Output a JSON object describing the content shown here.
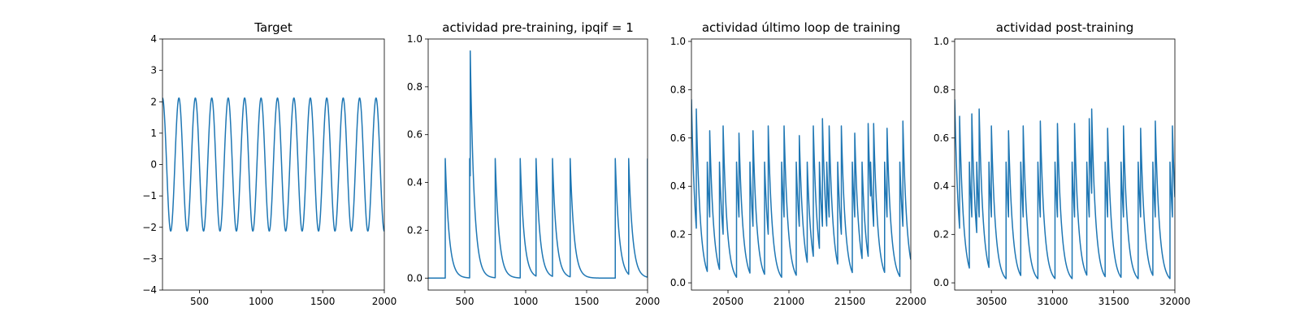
{
  "line_color": "#1f77b4",
  "chart_data": [
    {
      "type": "line",
      "title": "Target",
      "xlim": [
        200,
        2000
      ],
      "ylim": [
        -4,
        4
      ],
      "xticks": [
        500,
        1000,
        1500,
        2000
      ],
      "yticks": [
        -4,
        -3,
        -2,
        -1,
        0,
        1,
        2,
        3,
        4
      ],
      "series": [
        {
          "kind": "sine",
          "amplitude": 2.12,
          "period": 133.3,
          "peak_at": 200,
          "x_range": [
            200,
            2000
          ]
        }
      ]
    },
    {
      "type": "line",
      "title": "actividad pre-training, ipqif = 1",
      "xlim": [
        200,
        2000
      ],
      "ylim": [
        -0.05,
        1.0
      ],
      "xticks": [
        500,
        1000,
        1500,
        2000
      ],
      "yticks": [
        0.0,
        0.2,
        0.4,
        0.6,
        0.8,
        1.0
      ],
      "series": [
        {
          "kind": "spikes",
          "x_range": [
            200,
            2000
          ],
          "baseline": 0.0,
          "decay": 32,
          "spikes": [
            [
              340,
              0.5
            ],
            [
              540,
              0.5
            ],
            [
              545,
              0.95
            ],
            [
              750,
              0.5
            ],
            [
              955,
              0.5
            ],
            [
              1085,
              0.5
            ],
            [
              1220,
              0.5
            ],
            [
              1365,
              0.5
            ],
            [
              1735,
              0.5
            ],
            [
              1845,
              0.5
            ],
            [
              2000,
              0.5
            ]
          ]
        }
      ]
    },
    {
      "type": "line",
      "title": "actividad último loop de training",
      "xlim": [
        20200,
        22000
      ],
      "ylim": [
        -0.03,
        1.01
      ],
      "xticks": [
        20500,
        21000,
        21500,
        22000
      ],
      "yticks": [
        0.0,
        0.2,
        0.4,
        0.6,
        0.8,
        1.0
      ],
      "series": [
        {
          "kind": "spikes",
          "x_range": [
            20200,
            22000
          ],
          "baseline": 0.0,
          "decay": 33,
          "start_value": 0.76,
          "spikes": [
            [
              20240,
              0.72
            ],
            [
              20330,
              0.5
            ],
            [
              20350,
              0.63
            ],
            [
              20430,
              0.5
            ],
            [
              20460,
              0.65
            ],
            [
              20570,
              0.5
            ],
            [
              20590,
              0.62
            ],
            [
              20680,
              0.5
            ],
            [
              20705,
              0.63
            ],
            [
              20800,
              0.5
            ],
            [
              20830,
              0.65
            ],
            [
              20940,
              0.5
            ],
            [
              20960,
              0.65
            ],
            [
              21060,
              0.5
            ],
            [
              21085,
              0.61
            ],
            [
              21150,
              0.5
            ],
            [
              21200,
              0.65
            ],
            [
              21250,
              0.5
            ],
            [
              21275,
              0.68
            ],
            [
              21310,
              0.5
            ],
            [
              21330,
              0.65
            ],
            [
              21400,
              0.5
            ],
            [
              21430,
              0.65
            ],
            [
              21520,
              0.5
            ],
            [
              21540,
              0.62
            ],
            [
              21600,
              0.5
            ],
            [
              21650,
              0.66
            ],
            [
              21670,
              0.5
            ],
            [
              21695,
              0.66
            ],
            [
              21785,
              0.5
            ],
            [
              21805,
              0.64
            ],
            [
              21910,
              0.5
            ],
            [
              21935,
              0.67
            ]
          ]
        }
      ]
    },
    {
      "type": "line",
      "title": "actividad post-training",
      "xlim": [
        30200,
        32000
      ],
      "ylim": [
        -0.03,
        1.01
      ],
      "xticks": [
        30500,
        31000,
        31500,
        32000
      ],
      "yticks": [
        0.0,
        0.2,
        0.4,
        0.6,
        0.8,
        1.0
      ],
      "series": [
        {
          "kind": "spikes",
          "x_range": [
            30200,
            32000
          ],
          "baseline": 0.0,
          "decay": 33,
          "start_value": 0.76,
          "spikes": [
            [
              30240,
              0.69
            ],
            [
              30320,
              0.5
            ],
            [
              30340,
              0.7
            ],
            [
              30380,
              0.5
            ],
            [
              30400,
              0.72
            ],
            [
              30480,
              0.5
            ],
            [
              30500,
              0.65
            ],
            [
              30620,
              0.5
            ],
            [
              30640,
              0.63
            ],
            [
              30740,
              0.5
            ],
            [
              30760,
              0.65
            ],
            [
              30880,
              0.5
            ],
            [
              30900,
              0.67
            ],
            [
              31020,
              0.5
            ],
            [
              31040,
              0.66
            ],
            [
              31160,
              0.5
            ],
            [
              31180,
              0.66
            ],
            [
              31280,
              0.5
            ],
            [
              31300,
              0.68
            ],
            [
              31320,
              0.72
            ],
            [
              31430,
              0.5
            ],
            [
              31450,
              0.64
            ],
            [
              31560,
              0.5
            ],
            [
              31580,
              0.65
            ],
            [
              31700,
              0.5
            ],
            [
              31720,
              0.64
            ],
            [
              31820,
              0.5
            ],
            [
              31840,
              0.67
            ],
            [
              31960,
              0.5
            ],
            [
              31980,
              0.65
            ]
          ]
        }
      ]
    }
  ]
}
